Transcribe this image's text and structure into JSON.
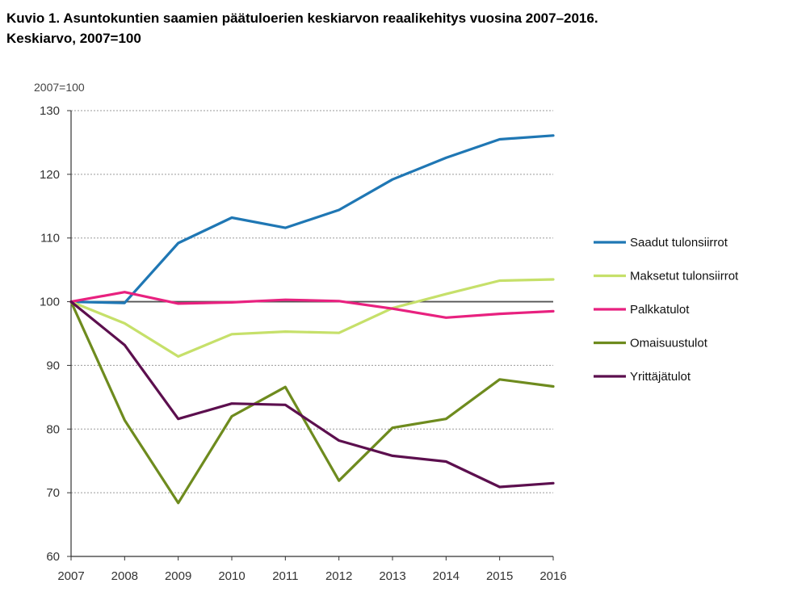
{
  "chart_data": {
    "type": "line",
    "title": "Kuvio 1. Asuntokuntien saamien päätuloerien keskiarvon reaalikehitys vuosina 2007–2016.",
    "subtitle": "Keskiarvo, 2007=100",
    "ylabel": "2007=100",
    "xlabel": "",
    "ylim": [
      60,
      130
    ],
    "yticks": [
      "60",
      "70",
      "80",
      "90",
      "100",
      "110",
      "120",
      "130"
    ],
    "x": [
      "2007",
      "2008",
      "2009",
      "2010",
      "2011",
      "2012",
      "2013",
      "2014",
      "2015",
      "2016"
    ],
    "grid": true,
    "legend_position": "right",
    "reference_line": 100,
    "series": [
      {
        "name": "Saadut tulonsiirrot",
        "color": "#1f77b4",
        "values": [
          100,
          99.8,
          109.2,
          113.2,
          111.6,
          114.4,
          119.2,
          122.6,
          125.5,
          126.1
        ]
      },
      {
        "name": "Maksetut tulonsiirrot",
        "color": "#c6e06a",
        "values": [
          100,
          96.6,
          91.4,
          94.9,
          95.3,
          95.1,
          99.0,
          101.2,
          103.3,
          103.5
        ]
      },
      {
        "name": "Palkkatulot",
        "color": "#e8217f",
        "values": [
          100,
          101.5,
          99.7,
          99.9,
          100.3,
          100.1,
          98.9,
          97.5,
          98.1,
          98.5
        ]
      },
      {
        "name": "Omaisuustulot",
        "color": "#6e8b1e",
        "values": [
          100,
          81.4,
          68.4,
          82.0,
          86.6,
          71.9,
          80.2,
          81.6,
          87.8,
          86.7
        ]
      },
      {
        "name": "Yrittäjätulot",
        "color": "#5c0f4e",
        "values": [
          100,
          93.2,
          81.6,
          84.0,
          83.8,
          78.2,
          75.8,
          74.9,
          70.9,
          71.5
        ]
      }
    ]
  }
}
